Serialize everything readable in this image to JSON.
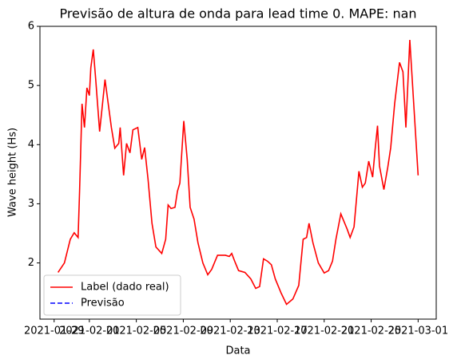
{
  "chart_data": {
    "type": "line",
    "title": "Previsão de altura de onda para lead time 0. MAPE: nan",
    "xlabel": "Data",
    "ylabel": "Wave height (Hs)",
    "x": [
      "2021-01-29 08:00",
      "2021-01-29 21:00",
      "2021-01-30 09:00",
      "2021-01-30 17:00",
      "2021-01-31 01:00",
      "2021-01-31 04:00",
      "2021-01-31 09:00",
      "2021-01-31 14:00",
      "2021-01-31 19:00",
      "2021-02-01 00:00",
      "2021-02-01 03:00",
      "2021-02-01 08:00",
      "2021-02-01 13:00",
      "2021-02-01 21:00",
      "2021-02-02 08:00",
      "2021-02-02 21:00",
      "2021-02-03 04:00",
      "2021-02-03 12:00",
      "2021-02-03 15:00",
      "2021-02-03 22:00",
      "2021-02-04 04:00",
      "2021-02-04 11:00",
      "2021-02-04 17:00",
      "2021-02-05 03:00",
      "2021-02-05 11:00",
      "2021-02-05 17:00",
      "2021-02-06 00:00",
      "2021-02-06 08:00",
      "2021-02-06 16:00",
      "2021-02-07 04:00",
      "2021-02-07 12:00",
      "2021-02-07 17:00",
      "2021-02-07 23:00",
      "2021-02-08 07:00",
      "2021-02-08 12:00",
      "2021-02-08 17:00",
      "2021-02-09 01:00",
      "2021-02-09 08:00",
      "2021-02-09 14:00",
      "2021-02-09 22:00",
      "2021-02-10 06:00",
      "2021-02-10 16:00",
      "2021-02-11 02:00",
      "2021-02-11 10:00",
      "2021-02-11 22:00",
      "2021-02-12 14:00",
      "2021-02-12 22:00",
      "2021-02-13 03:00",
      "2021-02-13 09:00",
      "2021-02-13 17:00",
      "2021-02-14 06:00",
      "2021-02-14 18:00",
      "2021-02-15 04:00",
      "2021-02-15 12:00",
      "2021-02-15 20:00",
      "2021-02-16 04:00",
      "2021-02-16 12:00",
      "2021-02-16 20:00",
      "2021-02-17 08:00",
      "2021-02-17 19:00",
      "2021-02-18 08:00",
      "2021-02-18 20:00",
      "2021-02-19 05:00",
      "2021-02-19 12:00",
      "2021-02-19 17:00",
      "2021-02-20 01:00",
      "2021-02-20 12:00",
      "2021-02-21 00:00",
      "2021-02-21 09:00",
      "2021-02-21 17:00",
      "2021-02-22 00:00",
      "2021-02-22 10:00",
      "2021-02-22 23:00",
      "2021-02-23 05:00",
      "2021-02-23 13:00",
      "2021-02-23 23:00",
      "2021-02-24 06:00",
      "2021-02-24 12:00",
      "2021-02-24 19:00",
      "2021-02-25 03:00",
      "2021-02-25 08:00",
      "2021-02-25 13:00",
      "2021-02-25 17:00",
      "2021-02-26 02:00",
      "2021-02-26 10:00",
      "2021-02-26 16:00",
      "2021-02-27 00:00",
      "2021-02-27 10:00",
      "2021-02-27 17:00",
      "2021-02-27 23:00",
      "2021-02-28 07:00",
      "2021-02-28 15:00",
      "2021-03-01 00:00"
    ],
    "series": [
      {
        "name": "Label (dado real)",
        "color": "#ff0000",
        "linestyle": "solid",
        "values": [
          1.84,
          2.0,
          2.4,
          2.51,
          2.43,
          3.21,
          4.69,
          4.29,
          4.96,
          4.83,
          5.3,
          5.61,
          5.1,
          4.22,
          5.1,
          4.29,
          3.94,
          4.02,
          4.29,
          3.48,
          4.02,
          3.86,
          4.25,
          4.29,
          3.75,
          3.95,
          3.41,
          2.67,
          2.27,
          2.16,
          2.4,
          2.98,
          2.92,
          2.94,
          3.21,
          3.35,
          4.4,
          3.75,
          2.94,
          2.74,
          2.34,
          2.0,
          1.8,
          1.89,
          2.13,
          2.13,
          2.11,
          2.16,
          2.03,
          1.87,
          1.84,
          1.73,
          1.57,
          1.6,
          2.07,
          2.03,
          1.97,
          1.73,
          1.49,
          1.3,
          1.39,
          1.62,
          2.4,
          2.43,
          2.67,
          2.34,
          2.0,
          1.83,
          1.87,
          2.03,
          2.4,
          2.83,
          2.57,
          2.43,
          2.61,
          3.55,
          3.28,
          3.35,
          3.72,
          3.45,
          3.91,
          4.32,
          3.64,
          3.24,
          3.62,
          3.95,
          4.69,
          5.39,
          5.23,
          4.29,
          5.77,
          4.69,
          3.48
        ]
      },
      {
        "name": "Previsão",
        "color": "#0000ff",
        "linestyle": "dashed",
        "values": [
          null,
          null,
          null,
          null,
          null,
          null,
          null,
          null,
          null,
          null,
          null,
          null,
          null,
          null,
          null,
          null,
          null,
          null,
          null,
          null,
          null,
          null,
          null,
          null,
          null,
          null,
          null,
          null,
          null,
          null,
          null,
          null,
          null,
          null,
          null,
          null,
          null,
          null,
          null,
          null,
          null,
          null,
          null,
          null,
          null,
          null,
          null,
          null,
          null,
          null,
          null,
          null,
          null,
          null,
          null,
          null,
          null,
          null,
          null,
          null,
          null,
          null,
          null,
          null,
          null,
          null,
          null,
          null,
          null,
          null,
          null,
          null,
          null,
          null,
          null,
          null,
          null,
          null,
          null,
          null,
          null,
          null,
          null,
          null,
          null,
          null,
          null,
          null,
          null,
          null,
          null,
          null,
          null
        ]
      }
    ],
    "xlim": [
      "2021-01-27 19:00",
      "2021-03-02 13:00"
    ],
    "xticks": [
      "2021-01-29",
      "2021-02-01",
      "2021-02-05",
      "2021-02-09",
      "2021-02-13",
      "2021-02-17",
      "2021-02-21",
      "2021-02-25",
      "2021-03-01"
    ],
    "ylim": [
      1.05,
      6.0
    ],
    "yticks": [
      2,
      3,
      4,
      5,
      6
    ],
    "grid": false,
    "legend": "lower left"
  }
}
